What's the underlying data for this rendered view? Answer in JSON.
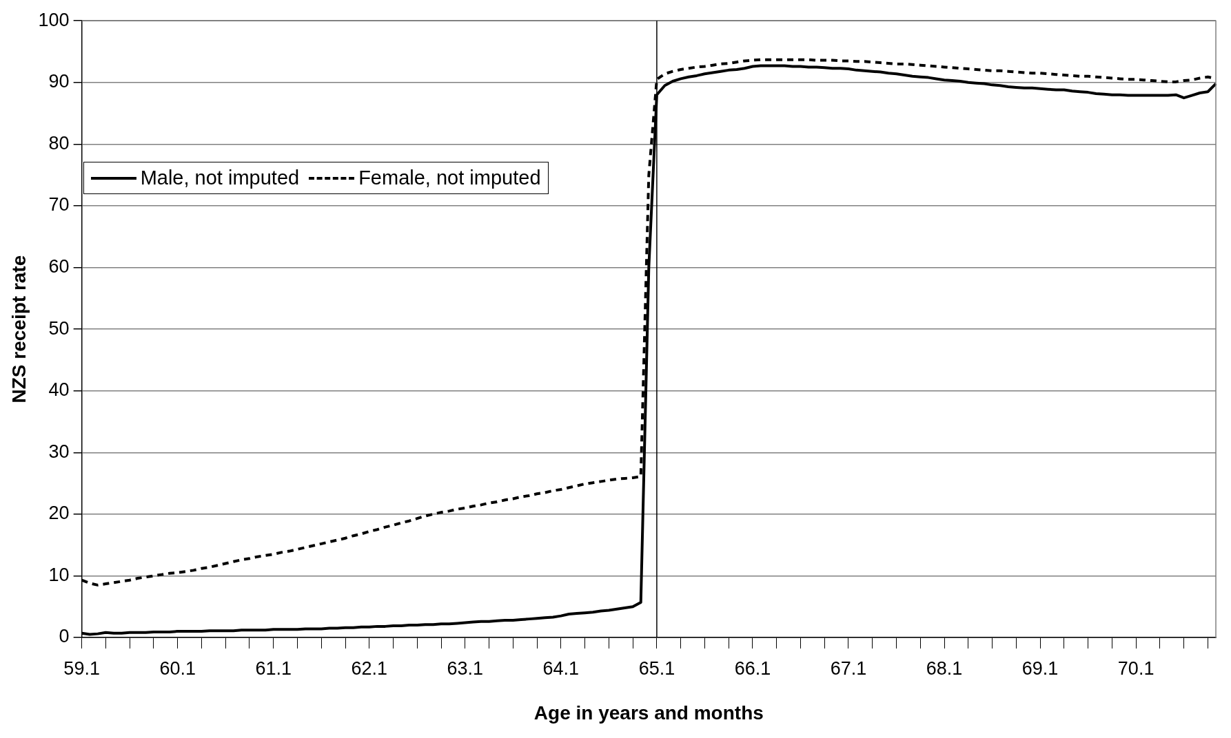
{
  "chart_data": {
    "type": "line",
    "xlabel": "Age in years and months",
    "ylabel": "NZS receipt rate",
    "categories": [
      "59.1",
      null,
      null,
      null,
      null,
      null,
      null,
      null,
      null,
      null,
      null,
      null,
      "60.1",
      null,
      null,
      null,
      null,
      null,
      null,
      null,
      null,
      null,
      null,
      null,
      "61.1",
      null,
      null,
      null,
      null,
      null,
      null,
      null,
      null,
      null,
      null,
      null,
      "62.1",
      null,
      null,
      null,
      null,
      null,
      null,
      null,
      null,
      null,
      null,
      null,
      "63.1",
      null,
      null,
      null,
      null,
      null,
      null,
      null,
      null,
      null,
      null,
      null,
      "64.1",
      null,
      null,
      null,
      null,
      null,
      null,
      null,
      null,
      null,
      null,
      null,
      "65.1",
      null,
      null,
      null,
      null,
      null,
      null,
      null,
      null,
      null,
      null,
      null,
      "66.1",
      null,
      null,
      null,
      null,
      null,
      null,
      null,
      null,
      null,
      null,
      null,
      "67.1",
      null,
      null,
      null,
      null,
      null,
      null,
      null,
      null,
      null,
      null,
      null,
      "68.1",
      null,
      null,
      null,
      null,
      null,
      null,
      null,
      null,
      null,
      null,
      null,
      "69.1",
      null,
      null,
      null,
      null,
      null,
      null,
      null,
      null,
      null,
      null,
      null,
      "70.1",
      null,
      null,
      null,
      null,
      null,
      null,
      null,
      null,
      null,
      null
    ],
    "series": [
      {
        "name": "Male, not imputed",
        "color": "#000000",
        "line_style": "solid",
        "values": [
          0.7,
          0.5,
          0.6,
          0.8,
          0.7,
          0.7,
          0.8,
          0.8,
          0.8,
          0.9,
          0.9,
          0.9,
          1.0,
          1.0,
          1.0,
          1.0,
          1.1,
          1.1,
          1.1,
          1.1,
          1.2,
          1.2,
          1.2,
          1.2,
          1.3,
          1.3,
          1.3,
          1.3,
          1.4,
          1.4,
          1.4,
          1.5,
          1.5,
          1.6,
          1.6,
          1.7,
          1.7,
          1.8,
          1.8,
          1.9,
          1.9,
          2.0,
          2.0,
          2.1,
          2.1,
          2.2,
          2.2,
          2.3,
          2.4,
          2.5,
          2.6,
          2.6,
          2.7,
          2.8,
          2.8,
          2.9,
          3.0,
          3.1,
          3.2,
          3.3,
          3.5,
          3.8,
          3.9,
          4.0,
          4.1,
          4.3,
          4.4,
          4.6,
          4.8,
          5.0,
          5.7,
          60,
          88.0,
          89.5,
          90.2,
          90.6,
          90.9,
          91.1,
          91.4,
          91.6,
          91.8,
          92.0,
          92.1,
          92.3,
          92.6,
          92.7,
          92.7,
          92.7,
          92.7,
          92.6,
          92.6,
          92.5,
          92.5,
          92.4,
          92.3,
          92.3,
          92.2,
          92.0,
          91.9,
          91.8,
          91.7,
          91.5,
          91.4,
          91.2,
          91.0,
          90.9,
          90.8,
          90.6,
          90.4,
          90.3,
          90.2,
          90.0,
          89.9,
          89.8,
          89.6,
          89.5,
          89.3,
          89.2,
          89.1,
          89.1,
          89.0,
          88.9,
          88.8,
          88.8,
          88.6,
          88.5,
          88.4,
          88.2,
          88.1,
          88.0,
          88.0,
          87.9,
          87.9,
          87.9,
          87.9,
          87.9,
          87.9,
          88.0,
          87.5,
          87.9,
          88.3,
          88.5,
          89.8
        ]
      },
      {
        "name": "Female, not imputed",
        "color": "#000000",
        "line_style": "dashed",
        "values": [
          9.3,
          8.8,
          8.5,
          8.7,
          8.9,
          9.1,
          9.3,
          9.6,
          9.8,
          10.0,
          10.2,
          10.4,
          10.5,
          10.7,
          10.9,
          11.2,
          11.4,
          11.7,
          12.0,
          12.3,
          12.6,
          12.8,
          13.1,
          13.3,
          13.5,
          13.8,
          14.0,
          14.3,
          14.6,
          14.9,
          15.2,
          15.5,
          15.8,
          16.1,
          16.5,
          16.8,
          17.2,
          17.5,
          17.9,
          18.2,
          18.6,
          18.9,
          19.3,
          19.7,
          20.0,
          20.3,
          20.5,
          20.8,
          21.0,
          21.3,
          21.5,
          21.8,
          22.0,
          22.3,
          22.5,
          22.8,
          23.0,
          23.3,
          23.5,
          23.8,
          24.0,
          24.3,
          24.6,
          24.9,
          25.1,
          25.3,
          25.5,
          25.7,
          25.8,
          25.9,
          26.1,
          75,
          90.5,
          91.4,
          91.8,
          92.1,
          92.3,
          92.5,
          92.6,
          92.8,
          93.0,
          93.1,
          93.3,
          93.5,
          93.6,
          93.7,
          93.7,
          93.7,
          93.7,
          93.7,
          93.7,
          93.7,
          93.6,
          93.6,
          93.6,
          93.5,
          93.5,
          93.4,
          93.4,
          93.3,
          93.2,
          93.1,
          93.0,
          93.0,
          92.9,
          92.8,
          92.7,
          92.6,
          92.5,
          92.4,
          92.3,
          92.2,
          92.1,
          92.0,
          91.9,
          91.9,
          91.8,
          91.7,
          91.6,
          91.5,
          91.5,
          91.4,
          91.3,
          91.2,
          91.1,
          91.0,
          91.0,
          90.9,
          90.8,
          90.7,
          90.6,
          90.5,
          90.5,
          90.4,
          90.3,
          90.2,
          90.1,
          90.1,
          90.3,
          90.4,
          90.7,
          90.9,
          90.6
        ]
      }
    ],
    "ylim": [
      0,
      100
    ],
    "yticks": [
      0,
      10,
      20,
      30,
      40,
      50,
      60,
      70,
      80,
      90,
      100
    ],
    "ref_lines": [
      {
        "axis": "x",
        "value": "65.1",
        "color": "#000000"
      }
    ],
    "grid": "y",
    "legend": "top left",
    "marker": "none"
  }
}
